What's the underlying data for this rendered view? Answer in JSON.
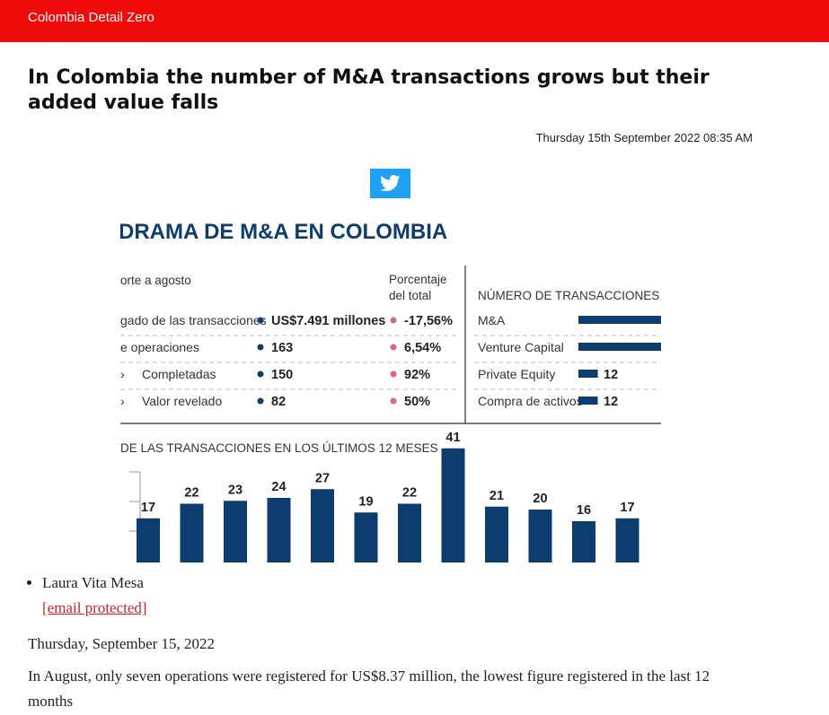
{
  "site": {
    "brand": "Colombia Detail Zero"
  },
  "article": {
    "headline": "In Colombia the number of M&A transactions grows but their added value falls",
    "timestamp": "Thursday 15th September 2022 08:35 AM",
    "author": "Laura Vita Mesa",
    "email": "[email protected]",
    "date": "Thursday, September 15, 2022",
    "summary": "In August, only seven operations were registered for US$8.37 million, the lowest figure registered in the last 12 months"
  },
  "share": {
    "icon": "twitter-icon",
    "color": "#1da1f2"
  },
  "colors": {
    "brand": "#f00a0a",
    "chart_navy": "#0d3d6e",
    "chart_pink": "#d9697a",
    "link": "#d31f1f"
  },
  "infographic": {
    "title": "DRAMA DE M&A EN COLOMBIA",
    "summary_table": {
      "header_left": "orte a agosto",
      "header_right_line1": "Porcentaje",
      "header_right_line2": "del total",
      "rows": [
        {
          "label": "gado de las transacciones",
          "value": "US$7.491 millones",
          "pct": "-17,56%"
        },
        {
          "label": "e operaciones",
          "value": "163",
          "pct": "6,54%"
        },
        {
          "label": "Completadas",
          "value": "150",
          "pct": "92%"
        },
        {
          "label": "Valor revelado",
          "value": "82",
          "pct": "50%"
        }
      ]
    },
    "by_type": {
      "title": "NÚMERO DE TRANSACCIONES POR TI",
      "rows": [
        {
          "label": "M&A",
          "value": ""
        },
        {
          "label": "Venture Capital",
          "value": ""
        },
        {
          "label": "Private Equity",
          "value": "12"
        },
        {
          "label": "Compra de activos",
          "value": "12"
        }
      ]
    },
    "monthly_title": "DE LAS TRANSACCIONES EN LOS ÚLTIMOS 12 MESES"
  },
  "chart_data": [
    {
      "type": "bar",
      "title": "NÚMERO DE TRANSACCIONES POR TI",
      "categories": [
        "M&A",
        "Venture Capital",
        "Private Equity",
        "Compra de activos"
      ],
      "values": [
        null,
        null,
        12,
        12
      ]
    },
    {
      "type": "bar",
      "title": "DE LAS TRANSACCIONES EN LOS ÚLTIMOS 12 MESES",
      "values": [
        17,
        22,
        23,
        24,
        27,
        19,
        22,
        41,
        21,
        20,
        16,
        17
      ],
      "ylim": [
        0,
        45
      ]
    }
  ]
}
